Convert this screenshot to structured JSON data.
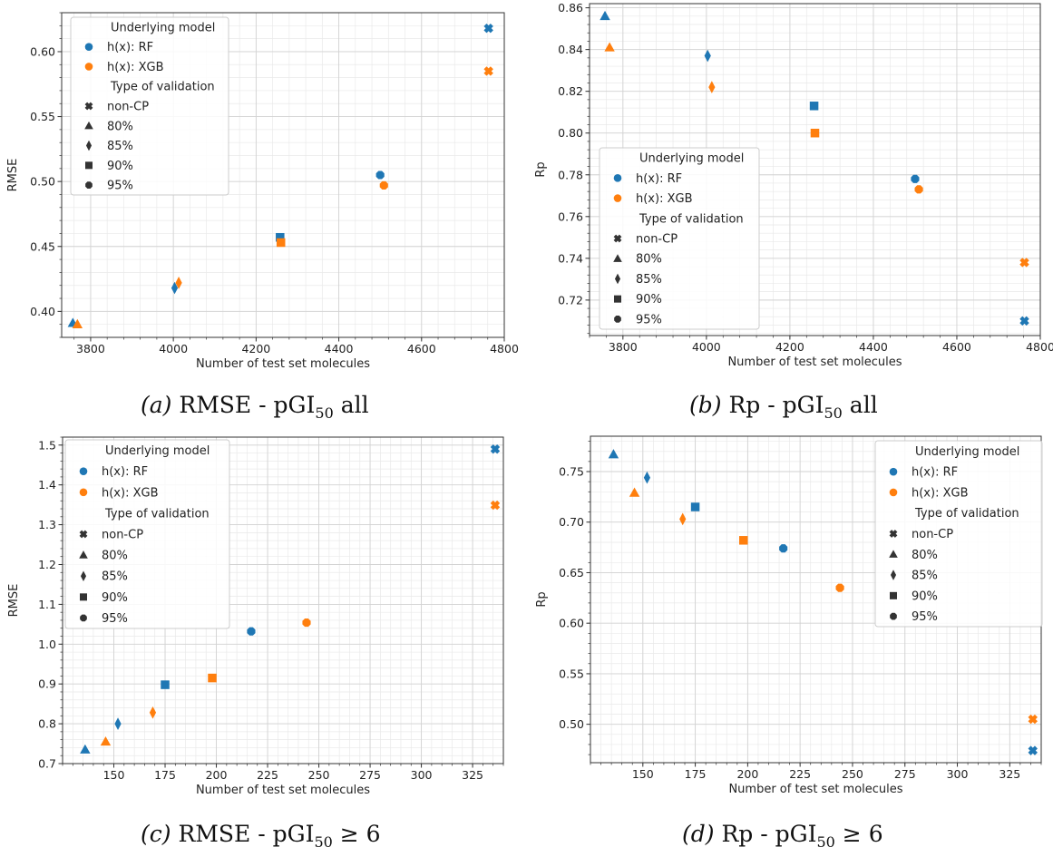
{
  "legend": {
    "model_title": "Underlying model",
    "model_entries": [
      {
        "label": "h(x): RF",
        "color": "#1f77b4"
      },
      {
        "label": "h(x): XGB",
        "color": "#ff7f0e"
      }
    ],
    "validation_title": "Type of validation",
    "validation_entries": [
      {
        "label": "non-CP",
        "marker": "x-marker-icon"
      },
      {
        "label": "80%",
        "marker": "triangle-marker-icon"
      },
      {
        "label": "85%",
        "marker": "diamond-marker-icon"
      },
      {
        "label": "90%",
        "marker": "square-marker-icon"
      },
      {
        "label": "95%",
        "marker": "circle-marker-icon"
      }
    ]
  },
  "captions": {
    "a": {
      "letter": "(a)",
      "metric": "RMSE",
      "sep": " - pGI",
      "sub": "50",
      "suffix": " all"
    },
    "b": {
      "letter": "(b)",
      "metric": "Rp",
      "sep": " - pGI",
      "sub": "50",
      "suffix": " all"
    },
    "c": {
      "letter": "(c)",
      "metric": "RMSE",
      "sep": " - pGI",
      "sub": "50",
      "suffix": " ≥ 6"
    },
    "d": {
      "letter": "(d)",
      "metric": "Rp",
      "sep": " - pGI",
      "sub": "50",
      "suffix": " ≥ 6"
    }
  },
  "chart_data": [
    {
      "type": "scatter",
      "xlabel": "Number of test set molecules",
      "ylabel": "RMSE",
      "xlim": [
        3730,
        4800
      ],
      "ylim": [
        0.38,
        0.63
      ],
      "xticks": [
        3800,
        4000,
        4200,
        4400,
        4600,
        4800
      ],
      "yticks": [
        0.4,
        0.45,
        0.5,
        0.55,
        0.6
      ],
      "xtick_labels": [
        "3800",
        "4000",
        "4200",
        "4400",
        "4600",
        "4800"
      ],
      "ytick_labels": [
        "0.40",
        "0.45",
        "0.50",
        "0.55",
        "0.60"
      ],
      "grid": true,
      "legend_position": "top-left",
      "series": [
        {
          "model": "h(x): RF",
          "color": "#1f77b4",
          "points": [
            {
              "x": 4762,
              "y": 0.618,
              "marker": "non-CP"
            },
            {
              "x": 3757,
              "y": 0.391,
              "marker": "80%"
            },
            {
              "x": 4003,
              "y": 0.418,
              "marker": "85%"
            },
            {
              "x": 4258,
              "y": 0.457,
              "marker": "90%"
            },
            {
              "x": 4500,
              "y": 0.505,
              "marker": "95%"
            }
          ]
        },
        {
          "model": "h(x): XGB",
          "color": "#ff7f0e",
          "points": [
            {
              "x": 4762,
              "y": 0.585,
              "marker": "non-CP"
            },
            {
              "x": 3768,
              "y": 0.39,
              "marker": "80%"
            },
            {
              "x": 4013,
              "y": 0.422,
              "marker": "85%"
            },
            {
              "x": 4260,
              "y": 0.453,
              "marker": "90%"
            },
            {
              "x": 4509,
              "y": 0.497,
              "marker": "95%"
            }
          ]
        }
      ]
    },
    {
      "type": "scatter",
      "xlabel": "Number of test set molecules",
      "ylabel": "Rp",
      "xlim": [
        3720,
        4800
      ],
      "ylim": [
        0.703,
        0.862
      ],
      "xticks": [
        3800,
        4000,
        4200,
        4400,
        4600,
        4800
      ],
      "yticks": [
        0.72,
        0.74,
        0.76,
        0.78,
        0.8,
        0.82,
        0.84,
        0.86
      ],
      "xtick_labels": [
        "3800",
        "4000",
        "4200",
        "4400",
        "4600",
        "4800"
      ],
      "ytick_labels": [
        "0.72",
        "0.74",
        "0.76",
        "0.78",
        "0.80",
        "0.82",
        "0.84",
        "0.86"
      ],
      "grid": true,
      "legend_position": "lower-left",
      "series": [
        {
          "model": "h(x): RF",
          "color": "#1f77b4",
          "points": [
            {
              "x": 4762,
              "y": 0.71,
              "marker": "non-CP"
            },
            {
              "x": 3757,
              "y": 0.856,
              "marker": "80%"
            },
            {
              "x": 4003,
              "y": 0.837,
              "marker": "85%"
            },
            {
              "x": 4258,
              "y": 0.813,
              "marker": "90%"
            },
            {
              "x": 4500,
              "y": 0.778,
              "marker": "95%"
            }
          ]
        },
        {
          "model": "h(x): XGB",
          "color": "#ff7f0e",
          "points": [
            {
              "x": 4762,
              "y": 0.738,
              "marker": "non-CP"
            },
            {
              "x": 3768,
              "y": 0.841,
              "marker": "80%"
            },
            {
              "x": 4013,
              "y": 0.822,
              "marker": "85%"
            },
            {
              "x": 4260,
              "y": 0.8,
              "marker": "90%"
            },
            {
              "x": 4509,
              "y": 0.773,
              "marker": "95%"
            }
          ]
        }
      ]
    },
    {
      "type": "scatter",
      "xlabel": "Number of test set molecules",
      "ylabel": "RMSE",
      "xlim": [
        125,
        340
      ],
      "ylim": [
        0.7,
        1.52
      ],
      "xticks": [
        150,
        175,
        200,
        225,
        250,
        275,
        300,
        325
      ],
      "yticks": [
        0.7,
        0.8,
        0.9,
        1.0,
        1.1,
        1.2,
        1.3,
        1.4,
        1.5
      ],
      "xtick_labels": [
        "150",
        "175",
        "200",
        "225",
        "250",
        "275",
        "300",
        "325"
      ],
      "ytick_labels": [
        "0.7",
        "0.8",
        "0.9",
        "1.0",
        "1.1",
        "1.2",
        "1.3",
        "1.4",
        "1.5"
      ],
      "grid": true,
      "legend_position": "top-left",
      "series": [
        {
          "model": "h(x): RF",
          "color": "#1f77b4",
          "points": [
            {
              "x": 336,
              "y": 1.49,
              "marker": "non-CP"
            },
            {
              "x": 136,
              "y": 0.735,
              "marker": "80%"
            },
            {
              "x": 152,
              "y": 0.8,
              "marker": "85%"
            },
            {
              "x": 175,
              "y": 0.898,
              "marker": "90%"
            },
            {
              "x": 217,
              "y": 1.032,
              "marker": "95%"
            }
          ]
        },
        {
          "model": "h(x): XGB",
          "color": "#ff7f0e",
          "points": [
            {
              "x": 336,
              "y": 1.349,
              "marker": "non-CP"
            },
            {
              "x": 146,
              "y": 0.755,
              "marker": "80%"
            },
            {
              "x": 169,
              "y": 0.828,
              "marker": "85%"
            },
            {
              "x": 198,
              "y": 0.915,
              "marker": "90%"
            },
            {
              "x": 244,
              "y": 1.054,
              "marker": "95%"
            }
          ]
        }
      ]
    },
    {
      "type": "scatter",
      "xlabel": "Number of test set molecules",
      "ylabel": "Rp",
      "xlim": [
        125,
        340
      ],
      "ylim": [
        0.462,
        0.785
      ],
      "xticks": [
        150,
        175,
        200,
        225,
        250,
        275,
        300,
        325
      ],
      "yticks": [
        0.5,
        0.55,
        0.6,
        0.65,
        0.7,
        0.75
      ],
      "xtick_labels": [
        "150",
        "175",
        "200",
        "225",
        "250",
        "275",
        "300",
        "325"
      ],
      "ytick_labels": [
        "0.50",
        "0.55",
        "0.60",
        "0.65",
        "0.70",
        "0.75"
      ],
      "grid": true,
      "legend_position": "top-right",
      "series": [
        {
          "model": "h(x): RF",
          "color": "#1f77b4",
          "points": [
            {
              "x": 336,
              "y": 0.474,
              "marker": "non-CP"
            },
            {
              "x": 136,
              "y": 0.767,
              "marker": "80%"
            },
            {
              "x": 152,
              "y": 0.744,
              "marker": "85%"
            },
            {
              "x": 175,
              "y": 0.715,
              "marker": "90%"
            },
            {
              "x": 217,
              "y": 0.674,
              "marker": "95%"
            }
          ]
        },
        {
          "model": "h(x): XGB",
          "color": "#ff7f0e",
          "points": [
            {
              "x": 336,
              "y": 0.505,
              "marker": "non-CP"
            },
            {
              "x": 146,
              "y": 0.729,
              "marker": "80%"
            },
            {
              "x": 169,
              "y": 0.703,
              "marker": "85%"
            },
            {
              "x": 198,
              "y": 0.682,
              "marker": "90%"
            },
            {
              "x": 244,
              "y": 0.635,
              "marker": "95%"
            }
          ]
        }
      ]
    }
  ]
}
